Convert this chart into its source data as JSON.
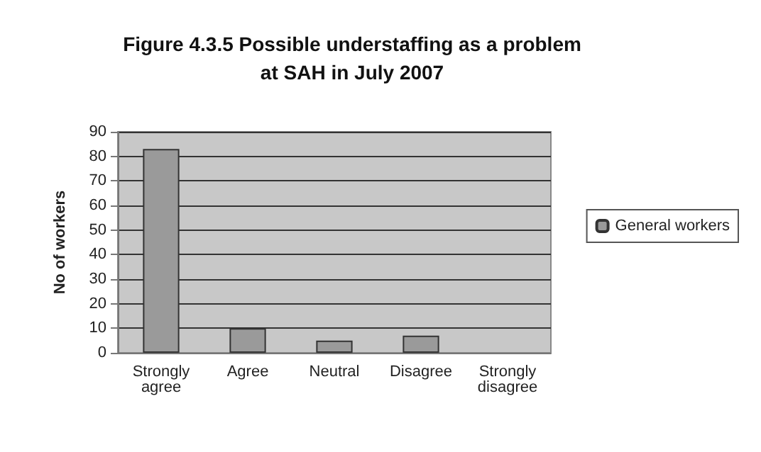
{
  "chart_data": {
    "type": "bar",
    "title": "Figure 4.3.5 Possible understaffing as a problem\nat SAH in July 2007",
    "ylabel": "No of workers",
    "categories": [
      "Strongly\nagree",
      "Agree",
      "Neutral",
      "Disagree",
      "Strongly\ndisagree"
    ],
    "series": [
      {
        "name": "General workers",
        "color": "#9a9a9a",
        "values": [
          83,
          10,
          5,
          7,
          0
        ]
      }
    ],
    "ylim": [
      0,
      90
    ],
    "yticks": [
      0,
      10,
      20,
      30,
      40,
      50,
      60,
      70,
      80,
      90
    ],
    "grid": "y",
    "legend": "right"
  }
}
